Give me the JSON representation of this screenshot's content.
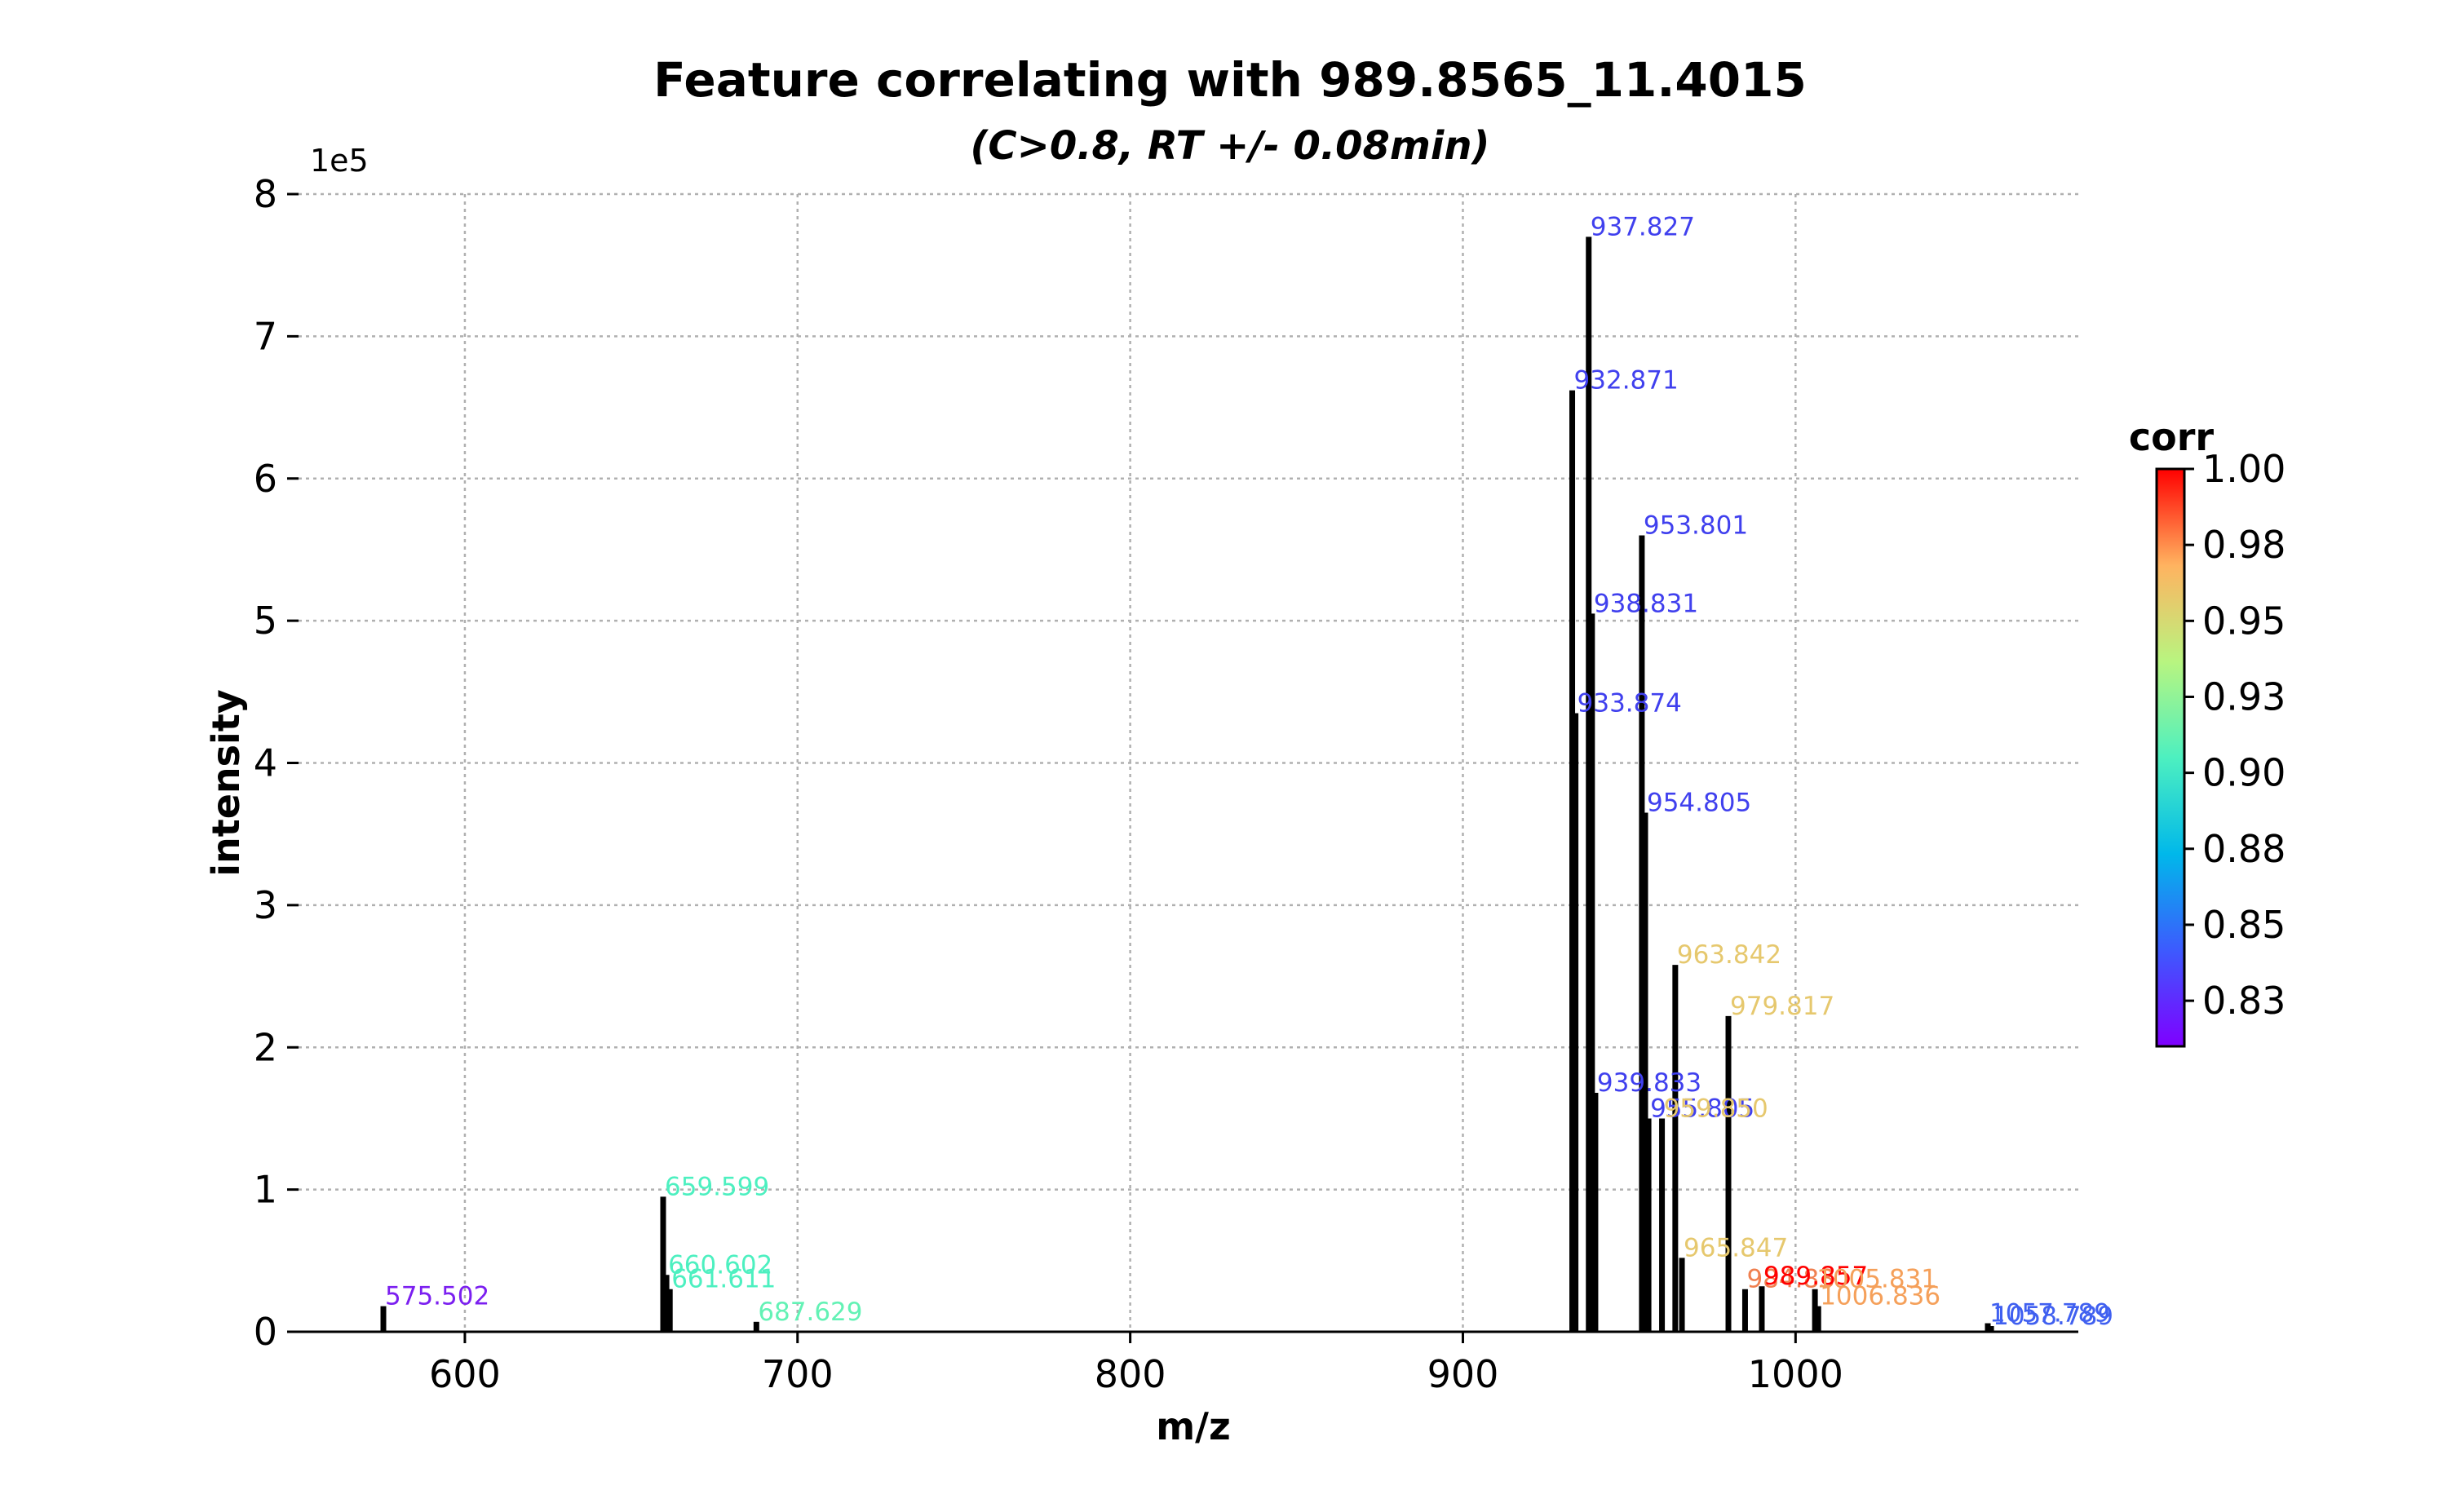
{
  "chart_data": {
    "type": "bar",
    "title": "Feature correlating with 989.8565_11.4015",
    "subtitle": "(C>0.8, RT +/- 0.08min)",
    "xlabel": "m/z",
    "ylabel": "intensity",
    "y_offset_label": "1e5",
    "xlim": [
      550,
      1085
    ],
    "ylim": [
      0,
      8
    ],
    "x_ticks": [
      600,
      700,
      800,
      900,
      1000
    ],
    "y_ticks": [
      0,
      1,
      2,
      3,
      4,
      5,
      6,
      7,
      8
    ],
    "grid": true,
    "colorbar": {
      "title": "corr",
      "range": [
        0.81,
        1.0
      ],
      "tick_values": [
        1.0,
        0.975,
        0.95,
        0.925,
        0.9,
        0.875,
        0.85,
        0.825
      ],
      "tick_labels": [
        "1.00",
        "0.98",
        "0.95",
        "0.93",
        "0.90",
        "0.88",
        "0.85",
        "0.83"
      ]
    },
    "peaks": [
      {
        "mz": 575.502,
        "intensity": 0.18,
        "label": "575.502",
        "color": "#7b1ff0"
      },
      {
        "mz": 659.599,
        "intensity": 0.95,
        "label": "659.599",
        "color": "#4df0c0"
      },
      {
        "mz": 660.602,
        "intensity": 0.4,
        "label": "660.602",
        "color": "#4df0c0"
      },
      {
        "mz": 661.611,
        "intensity": 0.3,
        "label": "661.611",
        "color": "#4df0c0"
      },
      {
        "mz": 687.629,
        "intensity": 0.07,
        "label": "687.629",
        "color": "#63f2b5"
      },
      {
        "mz": 932.871,
        "intensity": 6.62,
        "label": "932.871",
        "color": "#4040ee"
      },
      {
        "mz": 933.874,
        "intensity": 4.35,
        "label": "933.874",
        "color": "#4040ee"
      },
      {
        "mz": 937.827,
        "intensity": 7.7,
        "label": "937.827",
        "color": "#4040ee"
      },
      {
        "mz": 938.831,
        "intensity": 5.05,
        "label": "938.831",
        "color": "#4040ee"
      },
      {
        "mz": 939.833,
        "intensity": 1.68,
        "label": "939.833",
        "color": "#4040ee"
      },
      {
        "mz": 953.801,
        "intensity": 5.6,
        "label": "953.801",
        "color": "#4040ee"
      },
      {
        "mz": 954.805,
        "intensity": 3.65,
        "label": "954.805",
        "color": "#4040ee"
      },
      {
        "mz": 955.805,
        "intensity": 1.5,
        "label": "955.805",
        "color": "#4040ee"
      },
      {
        "mz": 959.85,
        "intensity": 1.5,
        "label": "959.850",
        "color": "#e6c86e"
      },
      {
        "mz": 963.842,
        "intensity": 2.58,
        "label": "963.842",
        "color": "#e6c86e"
      },
      {
        "mz": 965.847,
        "intensity": 0.52,
        "label": "965.847",
        "color": "#e6c86e"
      },
      {
        "mz": 979.817,
        "intensity": 2.22,
        "label": "979.817",
        "color": "#e6c86e"
      },
      {
        "mz": 984.83,
        "intensity": 0.3,
        "label": "984.83",
        "color": "#f08050"
      },
      {
        "mz": 989.857,
        "intensity": 0.32,
        "label": "989.857",
        "color": "#ff0000"
      },
      {
        "mz": 1005.831,
        "intensity": 0.3,
        "label": "1005.831",
        "color": "#f5a05a"
      },
      {
        "mz": 1006.836,
        "intensity": 0.18,
        "label": "1006.836",
        "color": "#f5a05a"
      },
      {
        "mz": 1057.789,
        "intensity": 0.06,
        "label": "1057.789",
        "color": "#4060f0"
      },
      {
        "mz": 1058.789,
        "intensity": 0.04,
        "label": "1058.789",
        "color": "#4060f0"
      }
    ]
  }
}
